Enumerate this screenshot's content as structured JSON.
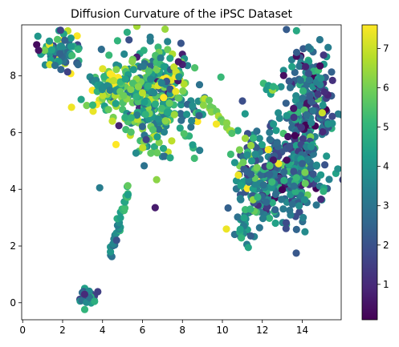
{
  "chart_data": {
    "type": "scatter",
    "title": "Diffusion Curvature of the iPSC Dataset",
    "xlabel": "",
    "ylabel": "",
    "xlim": [
      -0.05,
      15.95
    ],
    "ylim": [
      -0.6,
      9.8
    ],
    "xticks": [
      0,
      2,
      4,
      6,
      8,
      10,
      12,
      14
    ],
    "yticks": [
      0,
      2,
      4,
      6,
      8
    ],
    "grid": false,
    "legend": "none",
    "colormap": "viridis",
    "colormap_stops": [
      "#440154",
      "#482878",
      "#3e4989",
      "#31688e",
      "#26828e",
      "#1f9e89",
      "#35b779",
      "#6ece58",
      "#b5de2b",
      "#fde725"
    ],
    "colorbar": {
      "range": [
        0.1,
        7.6
      ],
      "ticks": [
        1,
        2,
        3,
        4,
        5,
        6,
        7
      ],
      "placement": "right"
    },
    "point_color": "curvature value (0.1–7.6)",
    "clusters": [
      {
        "label": "upper-left blob",
        "cx": 1.8,
        "cy": 8.8,
        "sx": 0.55,
        "sy": 0.35,
        "n": 85,
        "mean": 4.0,
        "spread": 1.6
      },
      {
        "label": "central large blob",
        "cx": 6.7,
        "cy": 7.2,
        "sx": 1.05,
        "sy": 0.9,
        "n": 380,
        "mean": 4.8,
        "spread": 1.7
      },
      {
        "label": "band left of central blob",
        "cx": 4.5,
        "cy": 7.6,
        "sx": 0.6,
        "sy": 0.4,
        "n": 70,
        "mean": 5.8,
        "spread": 1.3
      },
      {
        "label": "right tall upper",
        "cx": 14.3,
        "cy": 7.2,
        "sx": 0.55,
        "sy": 1.0,
        "n": 200,
        "mean": 2.8,
        "spread": 1.4
      },
      {
        "label": "right tall lower",
        "cx": 13.4,
        "cy": 4.6,
        "sx": 0.9,
        "sy": 0.9,
        "n": 300,
        "mean": 3.0,
        "spread": 1.4
      },
      {
        "label": "right mid cluster",
        "cx": 11.6,
        "cy": 4.6,
        "sx": 0.45,
        "sy": 0.9,
        "n": 110,
        "mean": 3.8,
        "spread": 1.5
      },
      {
        "label": "lower right tail",
        "cx": 11.2,
        "cy": 2.5,
        "sx": 0.25,
        "sy": 0.4,
        "n": 22,
        "mean": 3.8,
        "spread": 1.2
      },
      {
        "label": "bottom-left small blob",
        "cx": 3.3,
        "cy": 0.2,
        "sx": 0.2,
        "sy": 0.18,
        "n": 28,
        "mean": 3.5,
        "spread": 1.0
      },
      {
        "label": "spot near 13,7.5",
        "cx": 12.4,
        "cy": 7.5,
        "sx": 0.25,
        "sy": 0.1,
        "n": 10,
        "mean": 5.2,
        "spread": 1.0
      }
    ],
    "paths": [
      {
        "label": "diagonal strand",
        "from": [
          4.4,
          1.7
        ],
        "to": [
          5.3,
          4.1
        ],
        "n": 30,
        "values": [
          2.8,
          5.5
        ]
      },
      {
        "label": "bridge to right cluster",
        "from": [
          9.0,
          7.2
        ],
        "to": [
          10.5,
          6.0
        ],
        "n": 18,
        "values": [
          6.4,
          6.0
        ]
      },
      {
        "label": "strand into central blob",
        "from": [
          3.4,
          7.9
        ],
        "to": [
          4.4,
          7.5
        ],
        "n": 12,
        "values": [
          3.0,
          4.0
        ]
      }
    ],
    "extra_points": [
      {
        "x": 0.7,
        "y": 9.1,
        "v": 0.3
      },
      {
        "x": 0.8,
        "y": 8.9,
        "v": 0.5
      },
      {
        "x": 8.0,
        "y": 8.4,
        "v": 0.8
      },
      {
        "x": 7.8,
        "y": 8.5,
        "v": 0.6
      },
      {
        "x": 3.1,
        "y": 0.3,
        "v": 1.0
      },
      {
        "x": 4.7,
        "y": 2.2,
        "v": 2.0
      },
      {
        "x": 10.2,
        "y": 2.6,
        "v": 7.4
      },
      {
        "x": 11.3,
        "y": 1.95,
        "v": 4.5
      },
      {
        "x": 10.8,
        "y": 4.5,
        "v": 7.4
      },
      {
        "x": 12.3,
        "y": 5.4,
        "v": 7.5
      },
      {
        "x": 9.7,
        "y": 6.3,
        "v": 7.5
      },
      {
        "x": 15.0,
        "y": 6.7,
        "v": 7.0
      },
      {
        "x": 8.5,
        "y": 6.95,
        "v": 3.8
      }
    ]
  }
}
